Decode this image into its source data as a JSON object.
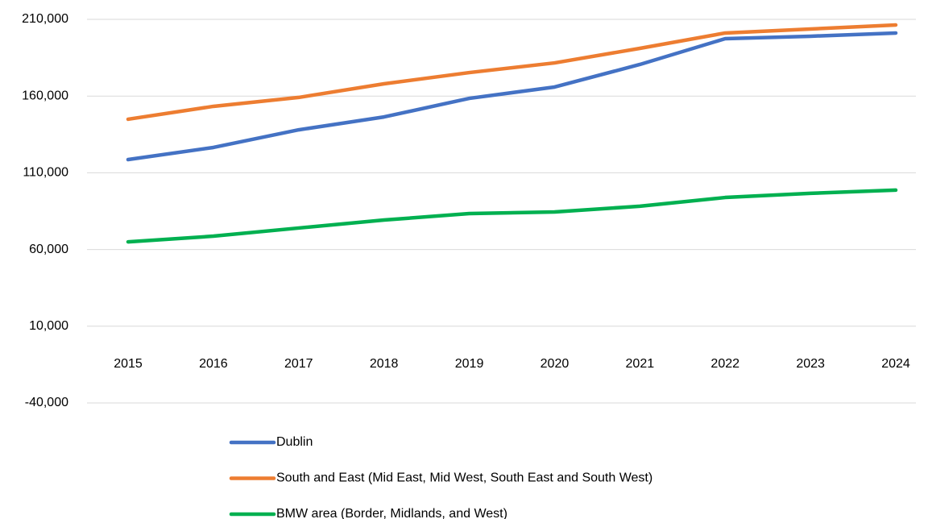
{
  "chart_data": {
    "type": "line",
    "categories": [
      "2015",
      "2016",
      "2017",
      "2018",
      "2019",
      "2020",
      "2021",
      "2022",
      "2023",
      "2024"
    ],
    "series": [
      {
        "name": "Dublin",
        "color": "#4472c4",
        "values": [
          118600,
          126500,
          138000,
          146400,
          158500,
          165900,
          180600,
          197400,
          199000,
          201100
        ]
      },
      {
        "name": "South and East (Mid East, Mid West, South East and South West)",
        "color": "#ed7d31",
        "values": [
          144900,
          153300,
          159100,
          168000,
          175300,
          181600,
          191100,
          201100,
          203700,
          206300
        ]
      },
      {
        "name": "BMW area (Border, Midlands, and West)",
        "color": "#00b050",
        "values": [
          65000,
          68700,
          74000,
          79200,
          83400,
          84500,
          88200,
          93900,
          96600,
          98700
        ]
      }
    ],
    "ylim": [
      -40000,
      210000
    ],
    "yticks": [
      {
        "value": -40000,
        "label": "-40,000"
      },
      {
        "value": 10000,
        "label": "10,000"
      },
      {
        "value": 60000,
        "label": "60,000"
      },
      {
        "value": 110000,
        "label": "110,000"
      },
      {
        "value": 160000,
        "label": "160,000"
      },
      {
        "value": 210000,
        "label": "210,000"
      }
    ],
    "grid": true,
    "legend": "bottom"
  }
}
